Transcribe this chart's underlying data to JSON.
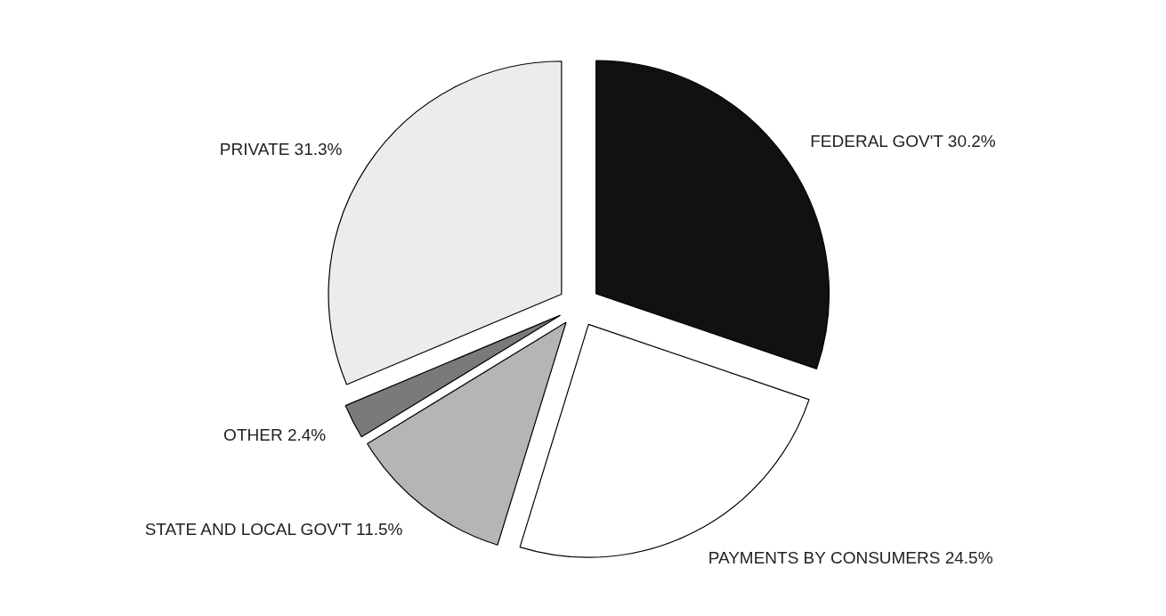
{
  "chart_data": {
    "type": "pie",
    "categories": [
      "FEDERAL GOV'T",
      "PAYMENTS BY CONSUMERS",
      "STATE AND LOCAL GOV'T",
      "OTHER",
      "PRIVATE"
    ],
    "values": [
      30.2,
      24.5,
      11.5,
      2.4,
      31.3
    ],
    "value_labels": [
      "30.2%",
      "24.5%",
      "11.5%",
      "2.4%",
      "31.3%"
    ],
    "colors": [
      "#111111",
      "#ffffff",
      "#b5b5b5",
      "#7a7a7a",
      "#ececec"
    ],
    "legend": false
  }
}
